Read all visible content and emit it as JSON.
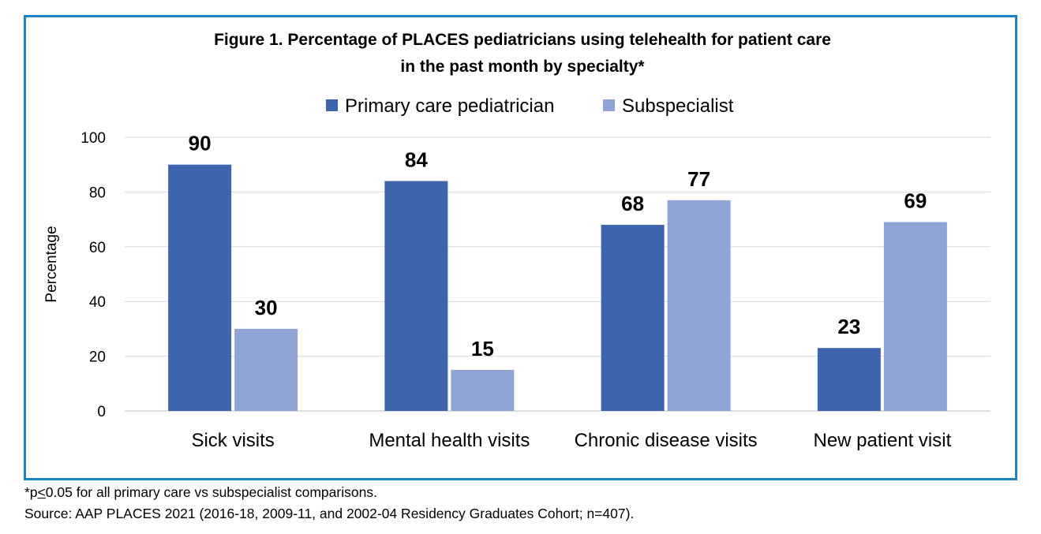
{
  "chart_data": {
    "type": "bar",
    "title_lines": [
      "Figure 1. Percentage of PLACES pediatricians using telehealth for patient care",
      "in the past month by specialty*"
    ],
    "ylabel": "Percentage",
    "xlabel": "",
    "ylim": [
      0,
      100
    ],
    "yticks": [
      0,
      20,
      40,
      60,
      80,
      100
    ],
    "grid": true,
    "legend_position": "top",
    "categories": [
      "Sick visits",
      "Mental health visits",
      "Chronic disease visits",
      "New patient visit"
    ],
    "series": [
      {
        "name": "Primary care pediatrician",
        "color": "#3d64ad",
        "values": [
          90,
          84,
          68,
          23
        ]
      },
      {
        "name": "Subspecialist",
        "color": "#8fa4d5",
        "values": [
          30,
          15,
          77,
          69
        ]
      }
    ]
  },
  "footnotes": {
    "line1_prefix": "*p",
    "line1_symbol": "<",
    "line1_suffix": "0.05 for all primary care vs subspecialist comparisons.",
    "line2": "Source: AAP PLACES 2021 (2016-18, 2009-11, and 2002-04 Residency Graduates Cohort; n=407)."
  },
  "colors": {
    "frame_border": "#1b82c3",
    "gridline": "#d9d9d9",
    "axis_line": "#bfbfbf"
  }
}
